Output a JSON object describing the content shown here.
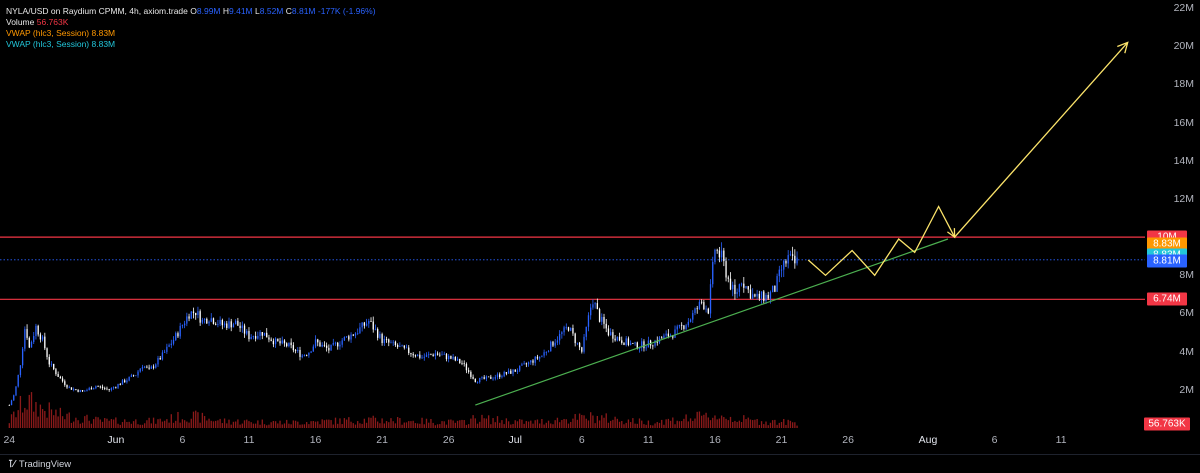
{
  "legend": {
    "symbol": "NYLA/USD on Raydium CPMM, 4h, axiom.trade",
    "ohlc_open_label": "O",
    "ohlc_open": "8.99M",
    "ohlc_high_label": "H",
    "ohlc_high": "9.41M",
    "ohlc_low_label": "L",
    "ohlc_low": "8.52M",
    "ohlc_close_label": "C",
    "ohlc_close": "8.81M",
    "ohlc_change": "-177K (-1.96%)",
    "volume_label": "Volume",
    "volume_value": "56.763K",
    "vwap1_label": "VWAP (hlc3, Session)",
    "vwap1_value": "8.83M",
    "vwap2_label": "VWAP (hlc3, Session)",
    "vwap2_value": "8.83M"
  },
  "footer": {
    "brand": "TradingView"
  },
  "colors": {
    "up": "#2962ff",
    "down": "#ffffff",
    "volume": "#8b1a1a",
    "resistance": "#f23645",
    "trend": "#4caf50",
    "projection": "#fbe36a",
    "vwap1": "#ff9800",
    "vwap2": "#22c6da",
    "last": "#2962ff",
    "volume_badge": "#f23645"
  },
  "price_badges": [
    {
      "text": "10M",
      "price": 10.0,
      "color": "#f23645"
    },
    {
      "text": "8.83M",
      "price": 9.65,
      "color": "#ff9800"
    },
    {
      "text": "8.83M",
      "price": 9.05,
      "color": "#22c6da"
    },
    {
      "text": "8.81M",
      "price": 8.75,
      "color": "#2962ff"
    },
    {
      "text": "6.74M",
      "price": 6.74,
      "color": "#f23645"
    }
  ],
  "volume_badge": {
    "text": "56.763K",
    "color": "#f23645"
  },
  "chart_data": {
    "type": "candlestick",
    "y_unit": "M",
    "ylim": [
      0,
      22
    ],
    "y_ticks": [
      {
        "v": 2,
        "label": "2M"
      },
      {
        "v": 4,
        "label": "4M"
      },
      {
        "v": 6,
        "label": "6M"
      },
      {
        "v": 8,
        "label": "8M"
      },
      {
        "v": 12,
        "label": "12M"
      },
      {
        "v": 14,
        "label": "14M"
      },
      {
        "v": 16,
        "label": "16M"
      },
      {
        "v": 18,
        "label": "18M"
      },
      {
        "v": 20,
        "label": "20M"
      },
      {
        "v": 22,
        "label": "22M"
      }
    ],
    "x_ticks": [
      {
        "day": -1,
        "label": "24",
        "major": false
      },
      {
        "day": 7,
        "label": "Jun",
        "major": true
      },
      {
        "day": 12,
        "label": "6",
        "major": false
      },
      {
        "day": 17,
        "label": "11",
        "major": false
      },
      {
        "day": 22,
        "label": "16",
        "major": false
      },
      {
        "day": 27,
        "label": "21",
        "major": false
      },
      {
        "day": 32,
        "label": "26",
        "major": false
      },
      {
        "day": 37,
        "label": "Jul",
        "major": true
      },
      {
        "day": 42,
        "label": "6",
        "major": false
      },
      {
        "day": 47,
        "label": "11",
        "major": false
      },
      {
        "day": 52,
        "label": "16",
        "major": false
      },
      {
        "day": 57,
        "label": "21",
        "major": false
      },
      {
        "day": 62,
        "label": "26",
        "major": false
      },
      {
        "day": 68,
        "label": "Aug",
        "major": true
      },
      {
        "day": 73,
        "label": "6",
        "major": false
      },
      {
        "day": 78,
        "label": "11",
        "major": false
      }
    ],
    "xlim_days": [
      -1.7,
      84.3
    ],
    "price_path": [
      {
        "day": -1.0,
        "price": 1.2
      },
      {
        "day": -0.6,
        "price": 1.8
      },
      {
        "day": -0.2,
        "price": 3.2
      },
      {
        "day": 0.2,
        "price": 5.4
      },
      {
        "day": 0.5,
        "price": 4.2
      },
      {
        "day": 1.0,
        "price": 5.3
      },
      {
        "day": 1.5,
        "price": 4.6
      },
      {
        "day": 2.0,
        "price": 3.4
      },
      {
        "day": 2.8,
        "price": 2.6
      },
      {
        "day": 3.5,
        "price": 2.1
      },
      {
        "day": 4.5,
        "price": 1.9
      },
      {
        "day": 5.5,
        "price": 2.2
      },
      {
        "day": 6.5,
        "price": 2.0
      },
      {
        "day": 7.5,
        "price": 2.4
      },
      {
        "day": 8.5,
        "price": 2.8
      },
      {
        "day": 9.0,
        "price": 3.3
      },
      {
        "day": 9.5,
        "price": 3.0
      },
      {
        "day": 10.5,
        "price": 3.8
      },
      {
        "day": 11.5,
        "price": 4.8
      },
      {
        "day": 12.5,
        "price": 6.0
      },
      {
        "day": 13.0,
        "price": 6.1
      },
      {
        "day": 13.5,
        "price": 5.6
      },
      {
        "day": 14.0,
        "price": 5.8
      },
      {
        "day": 15.0,
        "price": 5.4
      },
      {
        "day": 16.0,
        "price": 5.5
      },
      {
        "day": 17.0,
        "price": 4.8
      },
      {
        "day": 18.0,
        "price": 5.0
      },
      {
        "day": 19.0,
        "price": 4.5
      },
      {
        "day": 20.0,
        "price": 4.3
      },
      {
        "day": 21.0,
        "price": 3.8
      },
      {
        "day": 21.5,
        "price": 4.0
      },
      {
        "day": 22.0,
        "price": 4.5
      },
      {
        "day": 23.0,
        "price": 4.1
      },
      {
        "day": 24.0,
        "price": 4.6
      },
      {
        "day": 25.0,
        "price": 5.0
      },
      {
        "day": 26.0,
        "price": 5.6
      },
      {
        "day": 27.0,
        "price": 4.6
      },
      {
        "day": 28.0,
        "price": 4.3
      },
      {
        "day": 29.0,
        "price": 4.0
      },
      {
        "day": 30.0,
        "price": 3.7
      },
      {
        "day": 31.0,
        "price": 3.9
      },
      {
        "day": 32.0,
        "price": 3.7
      },
      {
        "day": 33.0,
        "price": 3.4
      },
      {
        "day": 34.0,
        "price": 2.5
      },
      {
        "day": 35.0,
        "price": 2.6
      },
      {
        "day": 36.0,
        "price": 2.8
      },
      {
        "day": 37.0,
        "price": 3.0
      },
      {
        "day": 38.0,
        "price": 3.4
      },
      {
        "day": 39.0,
        "price": 3.8
      },
      {
        "day": 40.0,
        "price": 4.6
      },
      {
        "day": 41.0,
        "price": 5.3
      },
      {
        "day": 41.5,
        "price": 4.6
      },
      {
        "day": 42.0,
        "price": 4.0
      },
      {
        "day": 42.8,
        "price": 6.8
      },
      {
        "day": 43.3,
        "price": 5.8
      },
      {
        "day": 44.0,
        "price": 5.0
      },
      {
        "day": 45.0,
        "price": 4.6
      },
      {
        "day": 46.0,
        "price": 4.3
      },
      {
        "day": 47.0,
        "price": 4.4
      },
      {
        "day": 48.0,
        "price": 4.7
      },
      {
        "day": 49.0,
        "price": 5.0
      },
      {
        "day": 50.0,
        "price": 5.6
      },
      {
        "day": 51.0,
        "price": 6.6
      },
      {
        "day": 51.5,
        "price": 6.2
      },
      {
        "day": 52.0,
        "price": 9.4
      },
      {
        "day": 52.5,
        "price": 8.9
      },
      {
        "day": 53.0,
        "price": 7.8
      },
      {
        "day": 53.5,
        "price": 6.9
      },
      {
        "day": 54.0,
        "price": 7.8
      },
      {
        "day": 54.5,
        "price": 7.2
      },
      {
        "day": 55.0,
        "price": 6.8
      },
      {
        "day": 56.0,
        "price": 6.9
      },
      {
        "day": 56.5,
        "price": 7.3
      },
      {
        "day": 57.0,
        "price": 8.3
      },
      {
        "day": 57.5,
        "price": 8.9
      },
      {
        "day": 58.0,
        "price": 8.6
      },
      {
        "day": 58.3,
        "price": 8.81
      }
    ],
    "volume_profile": [
      {
        "day": -1.0,
        "vol": 0.25
      },
      {
        "day": 0.2,
        "vol": 1.0
      },
      {
        "day": 1.5,
        "vol": 0.7
      },
      {
        "day": 3.0,
        "vol": 0.45
      },
      {
        "day": 6.0,
        "vol": 0.25
      },
      {
        "day": 10.0,
        "vol": 0.25
      },
      {
        "day": 12.5,
        "vol": 0.45
      },
      {
        "day": 15.0,
        "vol": 0.25
      },
      {
        "day": 20.0,
        "vol": 0.2
      },
      {
        "day": 26.0,
        "vol": 0.3
      },
      {
        "day": 33.0,
        "vol": 0.2
      },
      {
        "day": 34.0,
        "vol": 0.35
      },
      {
        "day": 38.0,
        "vol": 0.2
      },
      {
        "day": 42.8,
        "vol": 0.4
      },
      {
        "day": 47.0,
        "vol": 0.2
      },
      {
        "day": 52.0,
        "vol": 0.45
      },
      {
        "day": 55.0,
        "vol": 0.25
      },
      {
        "day": 58.3,
        "vol": 0.2
      }
    ],
    "resistance_lines": [
      {
        "price": 10.0,
        "color": "#f23645"
      },
      {
        "price": 6.74,
        "color": "#f23645"
      }
    ],
    "last_price_line": {
      "price": 8.81,
      "color": "#2962ff"
    },
    "trend_line": {
      "from": {
        "day": 34.0,
        "price": 1.2
      },
      "to": {
        "day": 69.5,
        "price": 9.9
      },
      "color": "#4caf50"
    },
    "projection_path": [
      {
        "day": 59.0,
        "price": 8.8
      },
      {
        "day": 60.3,
        "price": 8.0
      },
      {
        "day": 62.3,
        "price": 9.3
      },
      {
        "day": 64.0,
        "price": 8.0
      },
      {
        "day": 65.8,
        "price": 9.9
      },
      {
        "day": 67.0,
        "price": 9.2
      },
      {
        "day": 68.8,
        "price": 11.6
      },
      {
        "day": 70.0,
        "price": 10.0
      },
      {
        "day": 83.0,
        "price": 20.2
      }
    ]
  }
}
